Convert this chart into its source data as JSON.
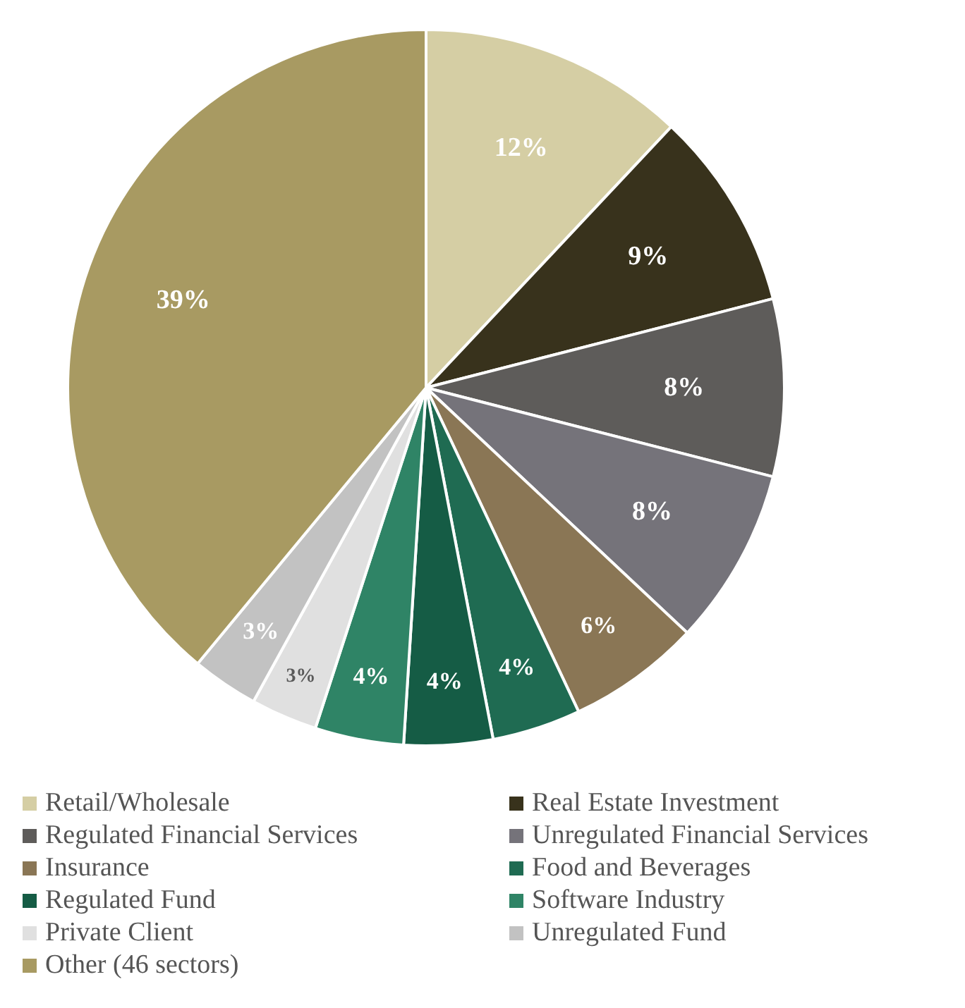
{
  "chart_data": {
    "type": "pie",
    "categories": [
      "Retail/Wholesale",
      "Real Estate Investment",
      "Regulated Financial Services",
      "Unregulated Financial Services",
      "Insurance",
      "Food and Beverages",
      "Regulated Fund",
      "Software Industry",
      "Private Client",
      "Unregulated Fund",
      "Other (46 sectors)"
    ],
    "values": [
      12,
      9,
      8,
      8,
      6,
      4,
      4,
      4,
      3,
      3,
      39
    ],
    "colors": [
      "#d5cea4",
      "#38321c",
      "#5e5c5a",
      "#75737a",
      "#8a7655",
      "#1f6b52",
      "#155c45",
      "#2f8466",
      "#e0e0e0",
      "#c2c2c2",
      "#a89a62"
    ],
    "value_labels": [
      "12%",
      "9%",
      "8%",
      "8%",
      "6%",
      "4%",
      "4%",
      "4%",
      "3%",
      "3%",
      "39%"
    ],
    "legend": "bottom"
  }
}
